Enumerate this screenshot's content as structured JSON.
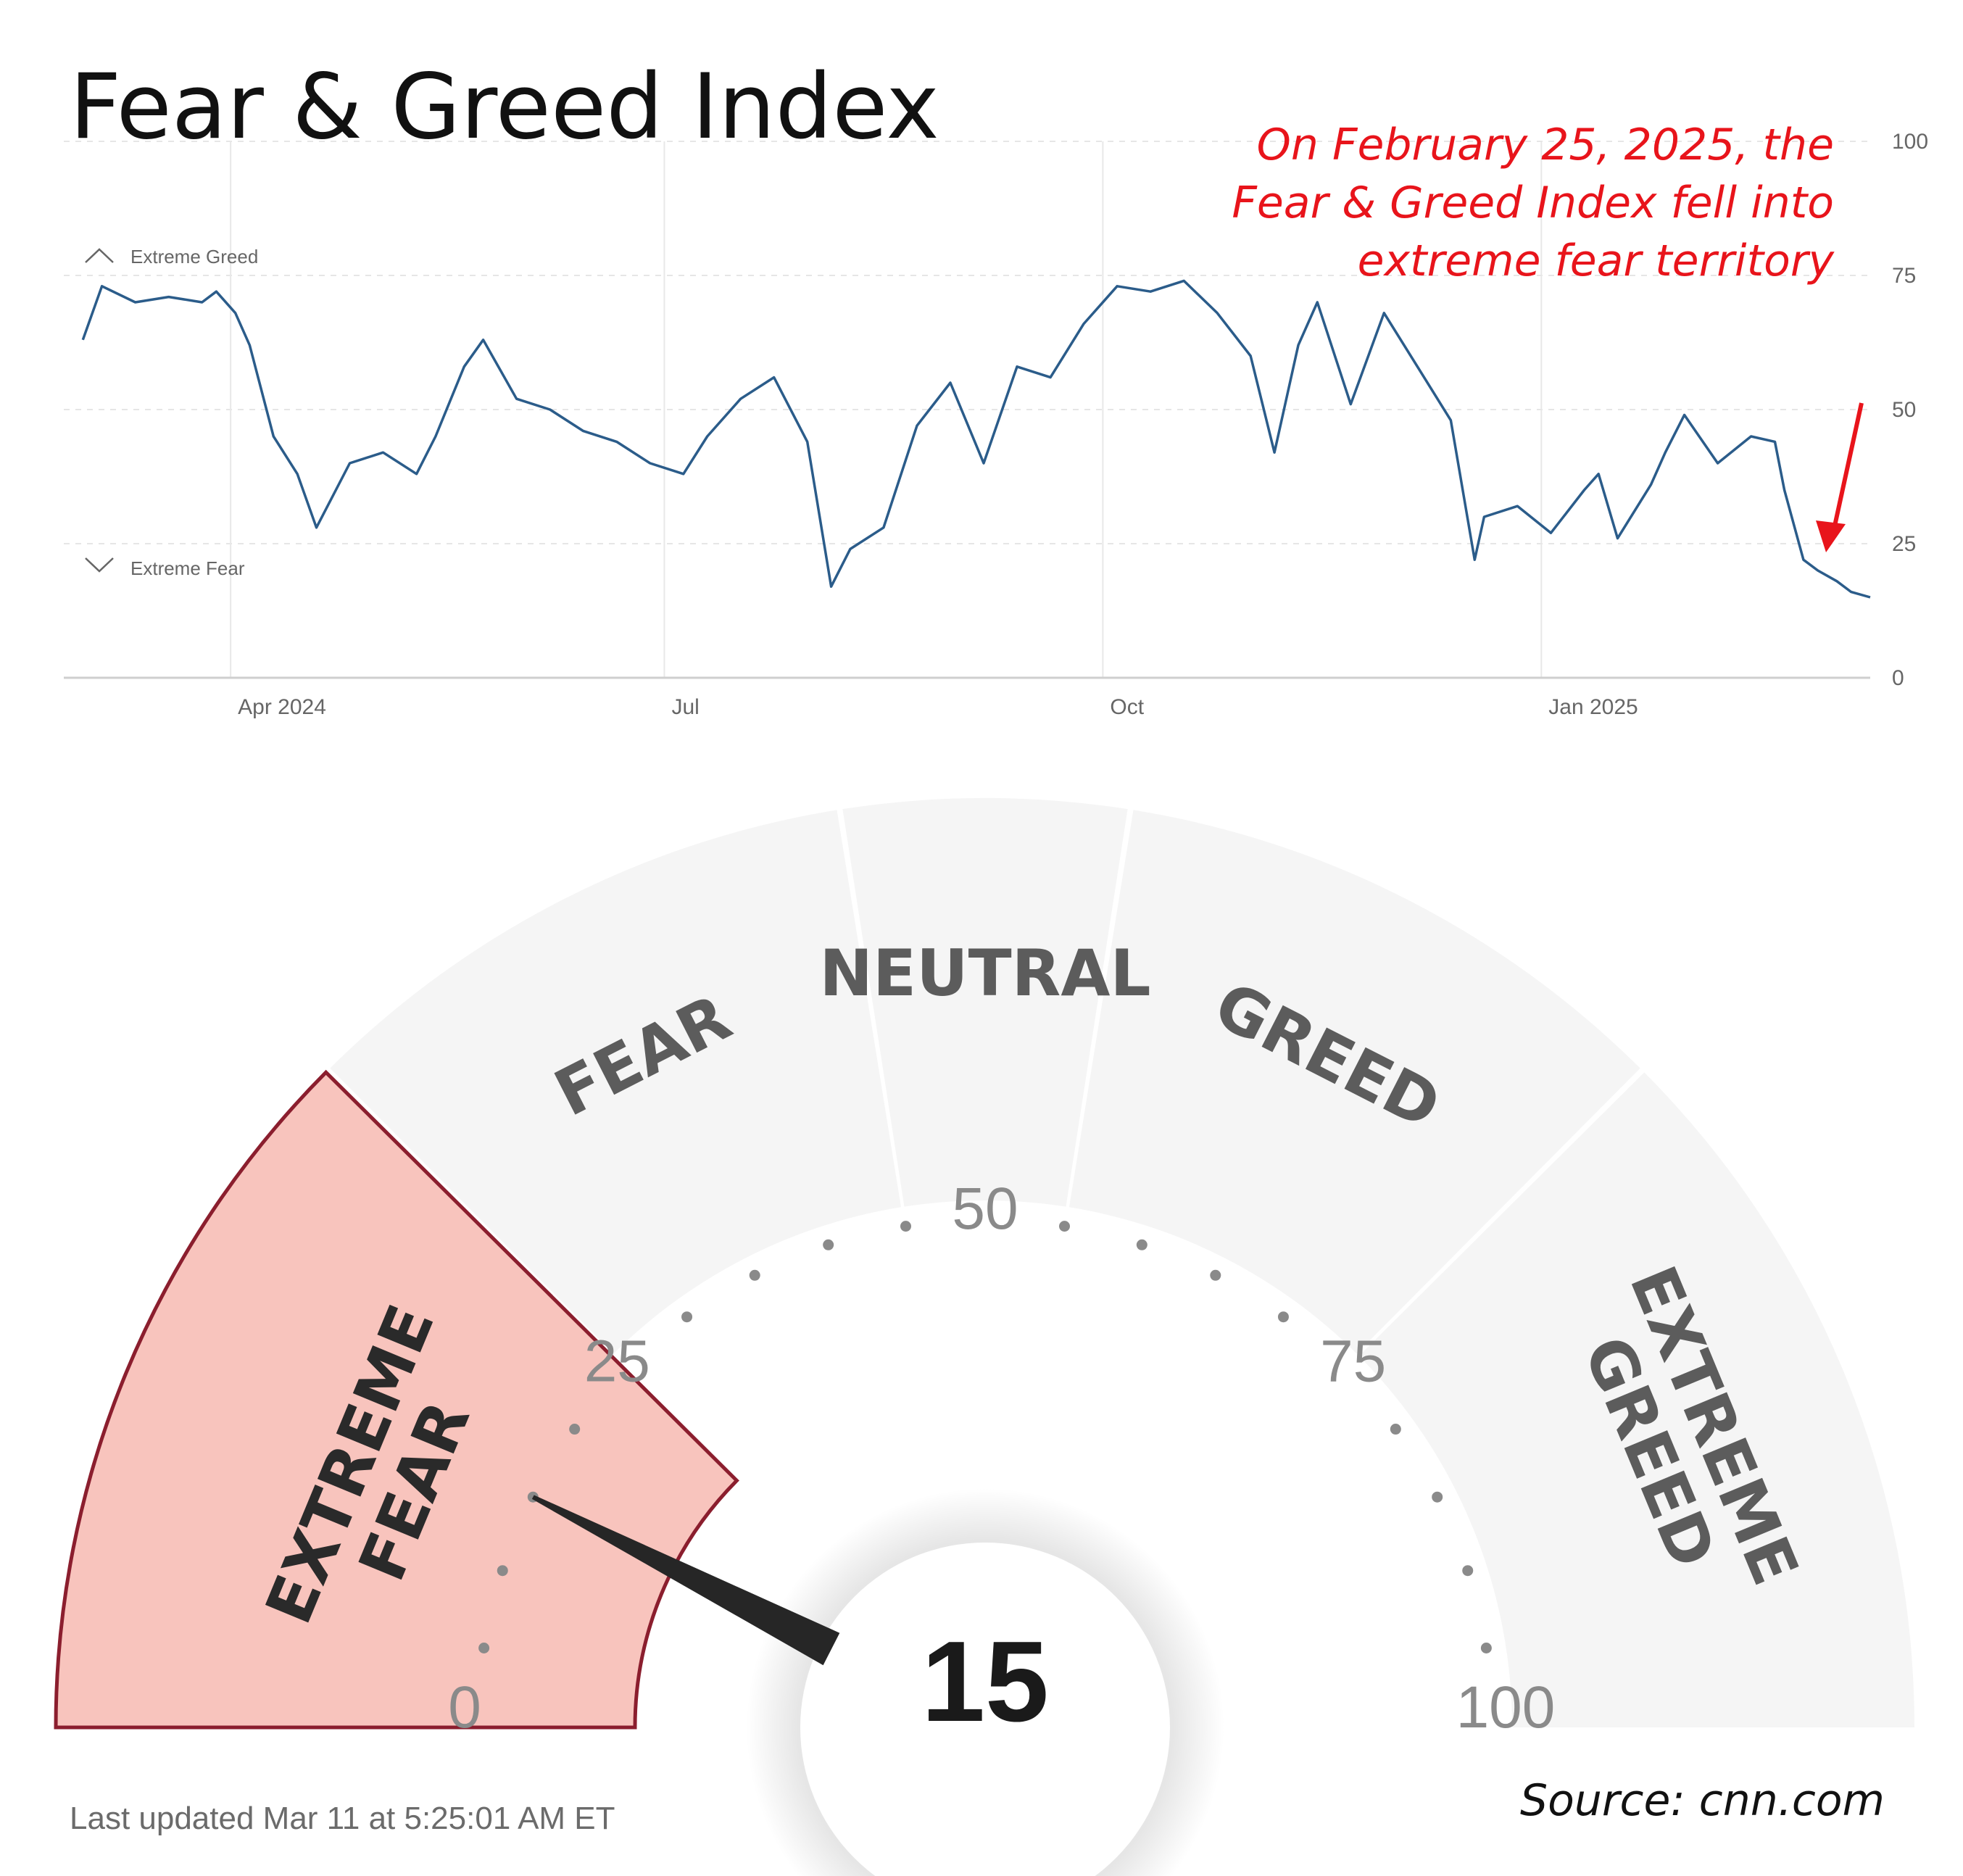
{
  "title": "Fear & Greed Index",
  "annotation": {
    "lines": [
      "On February 25, 2025, the",
      "Fear & Greed Index fell into",
      "extreme fear territory"
    ]
  },
  "chart_data": {
    "type": "line",
    "series": [
      {
        "color": "#2b5c8a",
        "x": [
          "2024-03-01",
          "2024-03-05",
          "2024-03-12",
          "2024-03-19",
          "2024-03-26",
          "2024-03-29",
          "2024-04-02",
          "2024-04-05",
          "2024-04-10",
          "2024-04-15",
          "2024-04-19",
          "2024-04-26",
          "2024-05-03",
          "2024-05-10",
          "2024-05-14",
          "2024-05-20",
          "2024-05-24",
          "2024-05-31",
          "2024-06-07",
          "2024-06-14",
          "2024-06-21",
          "2024-06-28",
          "2024-07-05",
          "2024-07-10",
          "2024-07-17",
          "2024-07-24",
          "2024-07-31",
          "2024-08-05",
          "2024-08-09",
          "2024-08-16",
          "2024-08-23",
          "2024-08-30",
          "2024-09-06",
          "2024-09-13",
          "2024-09-20",
          "2024-09-27",
          "2024-10-04",
          "2024-10-11",
          "2024-10-18",
          "2024-10-25",
          "2024-11-01",
          "2024-11-06",
          "2024-11-11",
          "2024-11-15",
          "2024-11-22",
          "2024-11-29",
          "2024-12-06",
          "2024-12-13",
          "2024-12-18",
          "2024-12-20",
          "2024-12-27",
          "2025-01-03",
          "2025-01-10",
          "2025-01-13",
          "2025-01-17",
          "2025-01-24",
          "2025-01-27",
          "2025-01-31",
          "2025-02-07",
          "2025-02-14",
          "2025-02-19",
          "2025-02-21",
          "2025-02-25",
          "2025-02-28",
          "2025-03-04",
          "2025-03-07",
          "2025-03-11"
        ],
        "y": [
          63,
          73,
          70,
          71,
          70,
          72,
          68,
          62,
          45,
          38,
          28,
          40,
          42,
          38,
          45,
          58,
          63,
          52,
          50,
          46,
          44,
          40,
          38,
          45,
          52,
          56,
          44,
          17,
          24,
          28,
          47,
          55,
          40,
          58,
          56,
          66,
          73,
          72,
          74,
          68,
          60,
          42,
          62,
          70,
          51,
          68,
          58,
          48,
          22,
          30,
          32,
          27,
          35,
          38,
          26,
          36,
          42,
          49,
          40,
          45,
          44,
          35,
          22,
          20,
          18,
          16,
          15
        ]
      }
    ],
    "y_ticks": [
      0,
      25,
      50,
      75,
      100
    ],
    "ylim": [
      0,
      100
    ],
    "x_ticks": [
      {
        "date": "2024-04-01",
        "label": "Apr 2024"
      },
      {
        "date": "2024-07-01",
        "label": "Jul"
      },
      {
        "date": "2024-10-01",
        "label": "Oct"
      },
      {
        "date": "2025-01-01",
        "label": "Jan 2025"
      }
    ],
    "zones": {
      "extreme_greed": "Extreme Greed",
      "extreme_fear": "Extreme Fear"
    },
    "grid": true
  },
  "gauge": {
    "value": 15,
    "value_text": "15",
    "segments": [
      {
        "label": "EXTREME FEAR",
        "lines": [
          "EXTREME",
          "FEAR"
        ],
        "from": 0,
        "to": 25,
        "active": true
      },
      {
        "label": "FEAR",
        "lines": [
          "FEAR"
        ],
        "from": 25,
        "to": 45,
        "active": false
      },
      {
        "label": "NEUTRAL",
        "lines": [
          "NEUTRAL"
        ],
        "from": 45,
        "to": 55,
        "active": false
      },
      {
        "label": "GREED",
        "lines": [
          "GREED"
        ],
        "from": 55,
        "to": 75,
        "active": false
      },
      {
        "label": "EXTREME GREED",
        "lines": [
          "EXTREME",
          "GREED"
        ],
        "from": 75,
        "to": 100,
        "active": false
      }
    ],
    "tick_labels": [
      "0",
      "25",
      "50",
      "75",
      "100"
    ],
    "colors": {
      "active_fill": "#f8c4bd",
      "active_stroke": "#8b1e2e",
      "inactive_fill": "#f5f5f5",
      "needle": "#262626"
    }
  },
  "footer": {
    "last_updated": "Last updated Mar 11 at 5:25:01 AM ET",
    "source": "Source:  cnn.com"
  }
}
